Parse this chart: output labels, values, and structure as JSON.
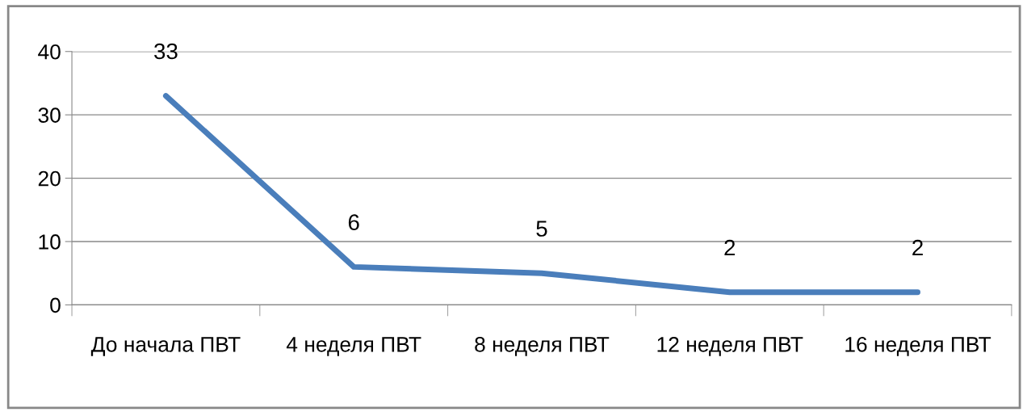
{
  "chart_data": {
    "type": "line",
    "categories": [
      "До начала ПВТ",
      "4 неделя ПВТ",
      "8 неделя ПВТ",
      "12 неделя ПВТ",
      "16 неделя ПВТ"
    ],
    "series": [
      {
        "color": "#4a7ebb",
        "values": [
          33,
          6,
          5,
          2,
          2
        ]
      }
    ],
    "ylim": [
      0,
      40
    ],
    "yticks": [
      0,
      10,
      20,
      30,
      40
    ],
    "grid": "y",
    "data_labels": true,
    "legend": false,
    "marker": "none",
    "line_style": "solid"
  }
}
